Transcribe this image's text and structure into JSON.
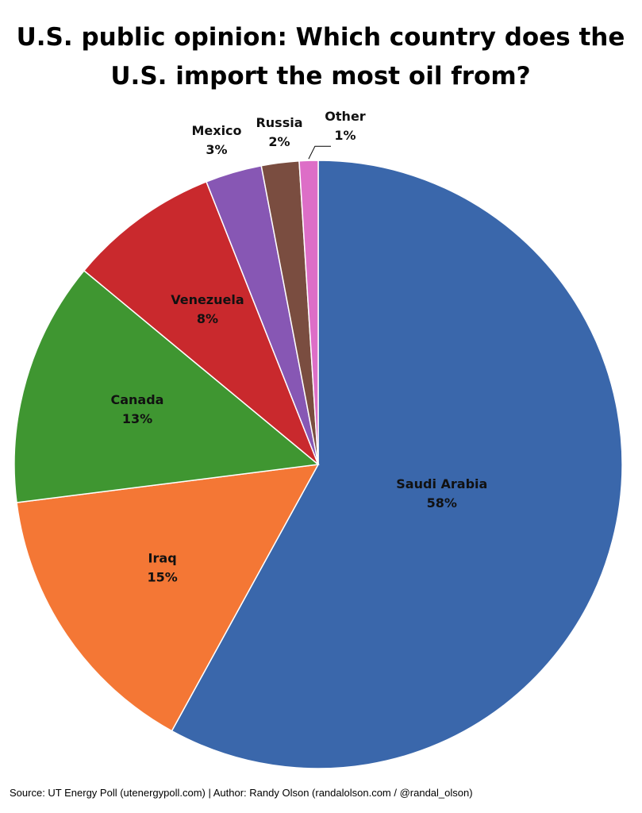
{
  "chart_data": {
    "type": "pie",
    "title": [
      "U.S. public opinion: Which country does the",
      "U.S. import the most oil from?"
    ],
    "categories": [
      "Saudi Arabia",
      "Iraq",
      "Canada",
      "Venezuela",
      "Mexico",
      "Russia",
      "Other"
    ],
    "values": [
      58,
      15,
      13,
      8,
      3,
      2,
      1
    ],
    "value_labels": [
      "58%",
      "15%",
      "13%",
      "8%",
      "3%",
      "2%",
      "1%"
    ],
    "colors": [
      "#3a67ab",
      "#f47735",
      "#3f9631",
      "#c9292d",
      "#8757b4",
      "#7a4d40",
      "#dd6ec7"
    ],
    "source": "Source: UT Energy Poll (utenergypoll.com) | Author: Randy Olson (randalolson.com / @randal_olson)"
  }
}
